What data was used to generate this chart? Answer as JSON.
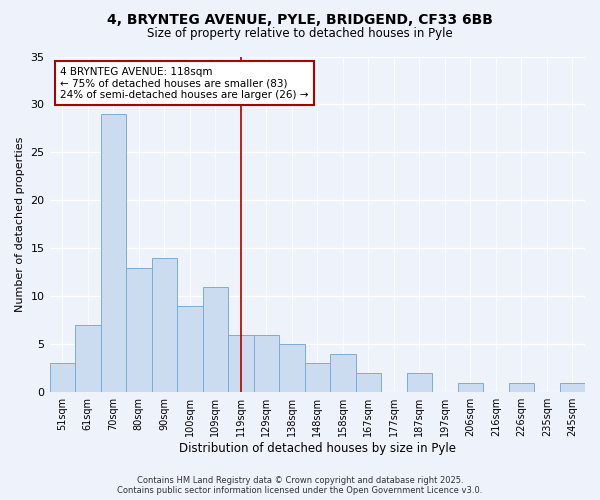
{
  "title_line1": "4, BRYNTEG AVENUE, PYLE, BRIDGEND, CF33 6BB",
  "title_line2": "Size of property relative to detached houses in Pyle",
  "xlabel": "Distribution of detached houses by size in Pyle",
  "ylabel": "Number of detached properties",
  "categories": [
    "51sqm",
    "61sqm",
    "70sqm",
    "80sqm",
    "90sqm",
    "100sqm",
    "109sqm",
    "119sqm",
    "129sqm",
    "138sqm",
    "148sqm",
    "158sqm",
    "167sqm",
    "177sqm",
    "187sqm",
    "197sqm",
    "206sqm",
    "216sqm",
    "226sqm",
    "235sqm",
    "245sqm"
  ],
  "values": [
    3,
    7,
    29,
    13,
    14,
    9,
    11,
    6,
    6,
    5,
    3,
    4,
    2,
    0,
    2,
    0,
    1,
    0,
    1,
    0,
    1
  ],
  "bar_color": "#ccdcf0",
  "bar_edge_color": "#7aaed6",
  "highlight_index": 7,
  "highlight_line_color": "#aa0000",
  "ylim": [
    0,
    35
  ],
  "yticks": [
    0,
    5,
    10,
    15,
    20,
    25,
    30,
    35
  ],
  "annotation_title": "4 BRYNTEG AVENUE: 118sqm",
  "annotation_line1": "← 75% of detached houses are smaller (83)",
  "annotation_line2": "24% of semi-detached houses are larger (26) →",
  "annotation_box_color": "#ffffff",
  "annotation_box_edge_color": "#aa0000",
  "footer_line1": "Contains HM Land Registry data © Crown copyright and database right 2025.",
  "footer_line2": "Contains public sector information licensed under the Open Government Licence v3.0.",
  "background_color": "#eef2fa"
}
